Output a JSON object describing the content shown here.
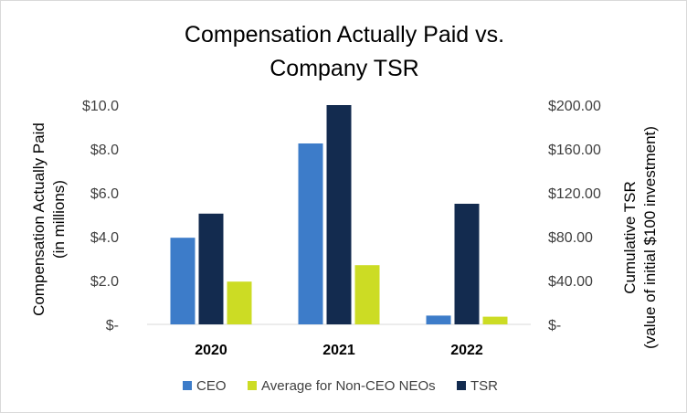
{
  "chart_data": {
    "type": "bar",
    "title_lines": [
      "Compensation Actually Paid vs.",
      "Company TSR"
    ],
    "categories": [
      "2020",
      "2021",
      "2022"
    ],
    "series": [
      {
        "name": "CEO",
        "axis": "left",
        "color": "#3D7CC9",
        "values": [
          3.95,
          8.25,
          0.4
        ]
      },
      {
        "name": "TSR",
        "axis": "right",
        "color": "#132B4F",
        "values": [
          101,
          200,
          110
        ]
      },
      {
        "name": "Average for Non-CEO NEOs",
        "axis": "left",
        "color": "#CCDC24",
        "values": [
          1.95,
          2.7,
          0.35
        ]
      }
    ],
    "legend_order": [
      "CEO",
      "Average for Non-CEO NEOs",
      "TSR"
    ],
    "y_left": {
      "label_lines": [
        "Compensation Actually Paid",
        "(in millions)"
      ],
      "ylim": [
        0,
        10
      ],
      "ticks": [
        0,
        2,
        4,
        6,
        8,
        10
      ],
      "tick_labels": [
        "$-",
        "$2.0",
        "$4.0",
        "$6.0",
        "$8.0",
        "$10.0"
      ]
    },
    "y_right": {
      "label_lines": [
        "Cumulative TSR",
        "(value of initial $100 investment)"
      ],
      "ylim": [
        0,
        200
      ],
      "ticks": [
        0,
        40,
        80,
        120,
        160,
        200
      ],
      "tick_labels": [
        "$-",
        "$40.00",
        "$80.00",
        "$120.00",
        "$160.00",
        "$200.00"
      ]
    },
    "grid": false,
    "legend_position": "bottom"
  }
}
